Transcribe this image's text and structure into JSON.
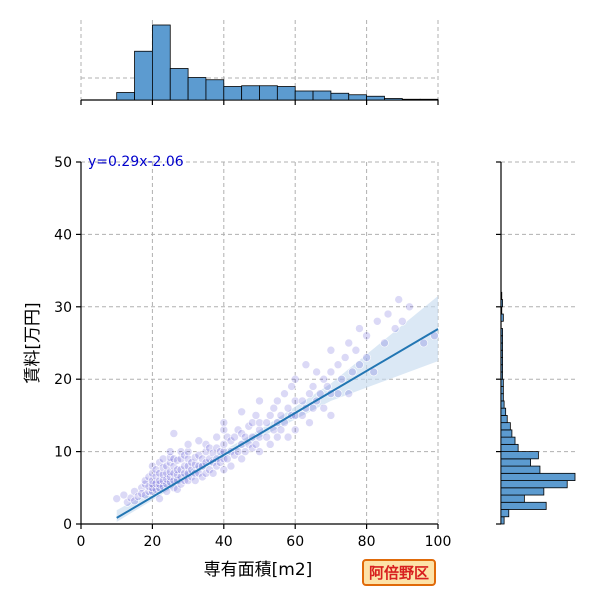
{
  "chart_data": {
    "type": "scatter",
    "title": "",
    "xlabel": "専有面積[m2]",
    "ylabel": "賃料[万円]",
    "xlim": [
      0,
      100
    ],
    "ylim": [
      0,
      50
    ],
    "xticks": [
      "0",
      "20",
      "40",
      "60",
      "80",
      "100"
    ],
    "yticks": [
      "0",
      "10",
      "20",
      "30",
      "40",
      "50"
    ],
    "grid": true,
    "annotation": "y=0.29x-2.06",
    "regression": {
      "slope": 0.29,
      "intercept": -2.06,
      "x_range": [
        10,
        100
      ]
    },
    "confidence_band": [
      {
        "x": 10,
        "lo": 0.3,
        "hi": 1.9
      },
      {
        "x": 30,
        "lo": 6.3,
        "hi": 7.3
      },
      {
        "x": 50,
        "lo": 11.9,
        "hi": 13.0
      },
      {
        "x": 70,
        "lo": 17.0,
        "hi": 19.4
      },
      {
        "x": 100,
        "lo": 22.5,
        "hi": 31.5
      }
    ],
    "top_histogram": {
      "bins": [
        [
          10,
          15
        ],
        [
          15,
          20
        ],
        [
          20,
          25
        ],
        [
          25,
          30
        ],
        [
          30,
          35
        ],
        [
          35,
          40
        ],
        [
          40,
          45
        ],
        [
          45,
          50
        ],
        [
          50,
          55
        ],
        [
          55,
          60
        ],
        [
          60,
          65
        ],
        [
          65,
          70
        ],
        [
          70,
          75
        ],
        [
          75,
          80
        ],
        [
          80,
          85
        ],
        [
          85,
          90
        ],
        [
          90,
          95
        ],
        [
          95,
          100
        ]
      ],
      "counts": [
        10,
        65,
        100,
        42,
        30,
        27,
        18,
        19,
        19,
        18,
        12,
        12,
        9,
        7,
        5,
        2,
        1,
        1
      ],
      "max": 100
    },
    "right_histogram": {
      "bins": [
        [
          0,
          1
        ],
        [
          1,
          2
        ],
        [
          2,
          3
        ],
        [
          3,
          4
        ],
        [
          4,
          5
        ],
        [
          5,
          6
        ],
        [
          6,
          7
        ],
        [
          7,
          8
        ],
        [
          8,
          9
        ],
        [
          9,
          10
        ],
        [
          10,
          11
        ],
        [
          11,
          12
        ],
        [
          12,
          13
        ],
        [
          13,
          14
        ],
        [
          14,
          15
        ],
        [
          15,
          16
        ],
        [
          16,
          17
        ],
        [
          17,
          18
        ],
        [
          18,
          19
        ],
        [
          19,
          20
        ],
        [
          20,
          21
        ],
        [
          21,
          22
        ],
        [
          22,
          23
        ],
        [
          23,
          24
        ],
        [
          24,
          25
        ],
        [
          25,
          26
        ],
        [
          26,
          27
        ],
        [
          27,
          28
        ],
        [
          28,
          29
        ],
        [
          29,
          30
        ],
        [
          30,
          31
        ],
        [
          31,
          32
        ]
      ],
      "counts": [
        4,
        10,
        58,
        30,
        55,
        85,
        95,
        50,
        38,
        48,
        22,
        18,
        14,
        12,
        8,
        6,
        4,
        3,
        3,
        3,
        2,
        2,
        2,
        2,
        2,
        2,
        2,
        0,
        3,
        1,
        2,
        1
      ],
      "max": 95
    },
    "points": [
      [
        10,
        3.5
      ],
      [
        12,
        4
      ],
      [
        13,
        3
      ],
      [
        14,
        3.6
      ],
      [
        15,
        4.5
      ],
      [
        15,
        3.2
      ],
      [
        16,
        3.8
      ],
      [
        17,
        5
      ],
      [
        17,
        4.2
      ],
      [
        18,
        4
      ],
      [
        18,
        5.5
      ],
      [
        18,
        6
      ],
      [
        19,
        4.5
      ],
      [
        19,
        5.2
      ],
      [
        19,
        6.5
      ],
      [
        20,
        4.5
      ],
      [
        20,
        5
      ],
      [
        20,
        5.5
      ],
      [
        20,
        6
      ],
      [
        20,
        7
      ],
      [
        20,
        8
      ],
      [
        21,
        4.8
      ],
      [
        21,
        5.6
      ],
      [
        21,
        6.6
      ],
      [
        21,
        7.5
      ],
      [
        22,
        5
      ],
      [
        22,
        5.5
      ],
      [
        22,
        6
      ],
      [
        22,
        7
      ],
      [
        22,
        8.5
      ],
      [
        22,
        3.5
      ],
      [
        23,
        5.2
      ],
      [
        23,
        6
      ],
      [
        23,
        6.8
      ],
      [
        23,
        7.8
      ],
      [
        23,
        9
      ],
      [
        24,
        5.5
      ],
      [
        24,
        6.2
      ],
      [
        24,
        7
      ],
      [
        24,
        8
      ],
      [
        24,
        4.5
      ],
      [
        25,
        5.8
      ],
      [
        25,
        6.5
      ],
      [
        25,
        7.2
      ],
      [
        25,
        8.5
      ],
      [
        25,
        9.2
      ],
      [
        25,
        10
      ],
      [
        26,
        5
      ],
      [
        26,
        6
      ],
      [
        26,
        7
      ],
      [
        26,
        8
      ],
      [
        26,
        9
      ],
      [
        26,
        12.5
      ],
      [
        27,
        6
      ],
      [
        27,
        6.8
      ],
      [
        27,
        7.5
      ],
      [
        27,
        8.8
      ],
      [
        27,
        4.8
      ],
      [
        28,
        5.5
      ],
      [
        28,
        6.5
      ],
      [
        28,
        7.5
      ],
      [
        28,
        9
      ],
      [
        28,
        10
      ],
      [
        29,
        6
      ],
      [
        29,
        7
      ],
      [
        29,
        8
      ],
      [
        29,
        9.5
      ],
      [
        30,
        6
      ],
      [
        30,
        7
      ],
      [
        30,
        8
      ],
      [
        30,
        9
      ],
      [
        30,
        10
      ],
      [
        30,
        11
      ],
      [
        31,
        6.5
      ],
      [
        31,
        7.5
      ],
      [
        31,
        8.5
      ],
      [
        32,
        6
      ],
      [
        32,
        7
      ],
      [
        32,
        8.2
      ],
      [
        32,
        9.2
      ],
      [
        33,
        7
      ],
      [
        33,
        8
      ],
      [
        33,
        9.5
      ],
      [
        33,
        11.5
      ],
      [
        34,
        6.5
      ],
      [
        34,
        8
      ],
      [
        34,
        9
      ],
      [
        35,
        7
      ],
      [
        35,
        8.5
      ],
      [
        35,
        10
      ],
      [
        35,
        11
      ],
      [
        36,
        7.5
      ],
      [
        36,
        9
      ],
      [
        36,
        10.5
      ],
      [
        37,
        7
      ],
      [
        37,
        8.5
      ],
      [
        37,
        9.8
      ],
      [
        38,
        8
      ],
      [
        38,
        9
      ],
      [
        38,
        10.5
      ],
      [
        38,
        12
      ],
      [
        39,
        8.5
      ],
      [
        39,
        10
      ],
      [
        40,
        7.5
      ],
      [
        40,
        9
      ],
      [
        40,
        10
      ],
      [
        40,
        11
      ],
      [
        40,
        13
      ],
      [
        40,
        14
      ],
      [
        41,
        9
      ],
      [
        41,
        12
      ],
      [
        42,
        8
      ],
      [
        42,
        10
      ],
      [
        42,
        11.5
      ],
      [
        43,
        9.5
      ],
      [
        43,
        12
      ],
      [
        44,
        10
      ],
      [
        44,
        13
      ],
      [
        45,
        9
      ],
      [
        45,
        11
      ],
      [
        45,
        12.5
      ],
      [
        45,
        15.5
      ],
      [
        46,
        10
      ],
      [
        46,
        12
      ],
      [
        47,
        11
      ],
      [
        47,
        13.5
      ],
      [
        48,
        10.5
      ],
      [
        48,
        12
      ],
      [
        48,
        14
      ],
      [
        49,
        11
      ],
      [
        49,
        15
      ],
      [
        50,
        10
      ],
      [
        50,
        12
      ],
      [
        50,
        13
      ],
      [
        50,
        14
      ],
      [
        50,
        17
      ],
      [
        52,
        12
      ],
      [
        52,
        14
      ],
      [
        53,
        11
      ],
      [
        53,
        15
      ],
      [
        54,
        13
      ],
      [
        54,
        16
      ],
      [
        55,
        12
      ],
      [
        55,
        14
      ],
      [
        55,
        17
      ],
      [
        56,
        13
      ],
      [
        56,
        15
      ],
      [
        57,
        14
      ],
      [
        57,
        18
      ],
      [
        58,
        12
      ],
      [
        58,
        16
      ],
      [
        59,
        15
      ],
      [
        59,
        19
      ],
      [
        60,
        13
      ],
      [
        60,
        15
      ],
      [
        60,
        17
      ],
      [
        60,
        20
      ],
      [
        62,
        15
      ],
      [
        62,
        17
      ],
      [
        63,
        16
      ],
      [
        63,
        22
      ],
      [
        64,
        14
      ],
      [
        64,
        18
      ],
      [
        65,
        16
      ],
      [
        65,
        19
      ],
      [
        66,
        17
      ],
      [
        66,
        21
      ],
      [
        67,
        18
      ],
      [
        68,
        16
      ],
      [
        68,
        20
      ],
      [
        69,
        19
      ],
      [
        70,
        15
      ],
      [
        70,
        18
      ],
      [
        70,
        21
      ],
      [
        70,
        24
      ],
      [
        72,
        18
      ],
      [
        72,
        22
      ],
      [
        73,
        20
      ],
      [
        74,
        23
      ],
      [
        75,
        18
      ],
      [
        75,
        25
      ],
      [
        76,
        21
      ],
      [
        77,
        24
      ],
      [
        78,
        22
      ],
      [
        78,
        27
      ],
      [
        80,
        23
      ],
      [
        80,
        26
      ],
      [
        82,
        21
      ],
      [
        83,
        28
      ],
      [
        85,
        25
      ],
      [
        86,
        29
      ],
      [
        88,
        27
      ],
      [
        89,
        31
      ],
      [
        90,
        28
      ],
      [
        92,
        30
      ],
      [
        96,
        25
      ],
      [
        99,
        26
      ]
    ]
  },
  "badge": {
    "label": "阿倍野区",
    "bg": "#fde2a8",
    "border": "#e06a0a",
    "text": "#d81f1f"
  },
  "colors": {
    "bars": "#5c9bd0",
    "line": "#2276b3",
    "band": "#c7dcef",
    "points": "#3a2fcc",
    "annotation": "#0000cc"
  }
}
